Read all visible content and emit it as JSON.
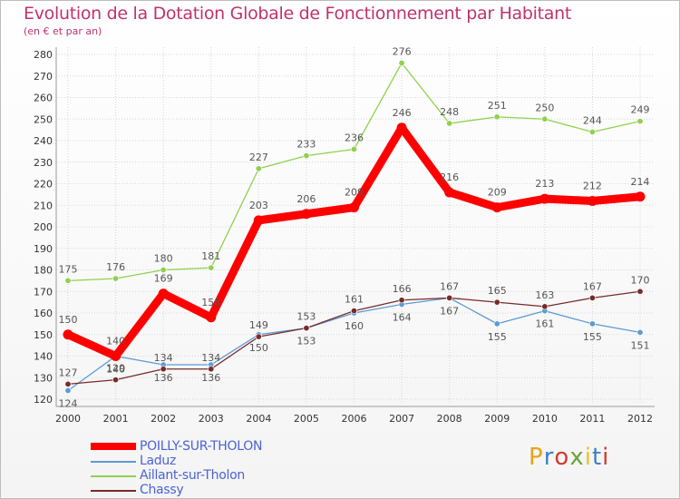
{
  "header": {
    "title": "Evolution de la Dotation Globale de Fonctionnement par Habitant",
    "subtitle": "(en € et par an)"
  },
  "logo": {
    "text": "Proxiti",
    "colors": [
      "#e8a21a",
      "#3a7fc4",
      "#d43b2b",
      "#6aa33a",
      "#f0c020",
      "#3a7fc4",
      "#d43b2b"
    ]
  },
  "chart_data": {
    "type": "line",
    "x": [
      "2000",
      "2001",
      "2002",
      "2003",
      "2004",
      "2005",
      "2006",
      "2007",
      "2008",
      "2009",
      "2010",
      "2011",
      "2012"
    ],
    "ylim": [
      120,
      280
    ],
    "yticks": [
      120,
      130,
      140,
      150,
      160,
      170,
      180,
      190,
      200,
      210,
      220,
      230,
      240,
      250,
      260,
      270,
      280
    ],
    "grid": true,
    "legend": "bottom-left",
    "series": [
      {
        "name": "POILLY-SUR-THOLON",
        "color": "#ff0000",
        "values": [
          150,
          140,
          169,
          158,
          203,
          206,
          209,
          246,
          216,
          209,
          213,
          212,
          214
        ]
      },
      {
        "name": "Laduz",
        "color": "#5b9bd5",
        "values": [
          124,
          140,
          136,
          136,
          150,
          153,
          160,
          164,
          167,
          155,
          161,
          155,
          151
        ]
      },
      {
        "name": "Aillant-sur-Tholon",
        "color": "#8fd14f",
        "values": [
          175,
          176,
          180,
          181,
          227,
          233,
          236,
          276,
          248,
          251,
          250,
          244,
          249
        ]
      },
      {
        "name": "Chassy",
        "color": "#7a2a2a",
        "values": [
          127,
          129,
          134,
          134,
          149,
          153,
          161,
          166,
          167,
          165,
          163,
          167,
          170
        ]
      }
    ]
  }
}
